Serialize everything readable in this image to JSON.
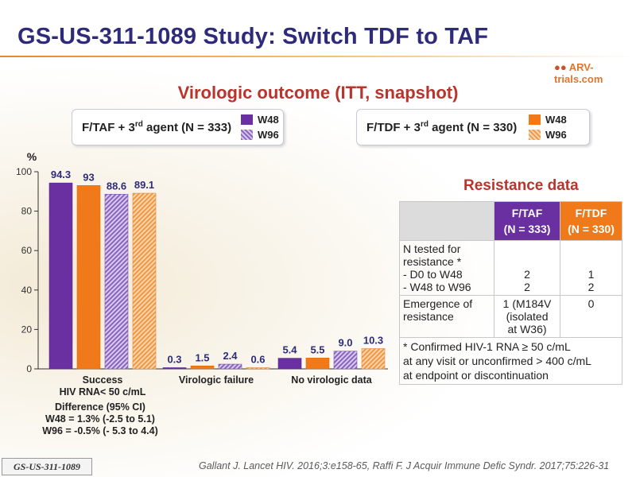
{
  "title": "GS-US-311-1089 Study: Switch TDF to TAF",
  "logo_text": "ARV-trials.com",
  "subtitle": "Virologic outcome (ITT, snapshot)",
  "legend_left": {
    "label_pre": "F/TAF + 3",
    "label_sup": "rd",
    "label_post": " agent (N = 333)",
    "w48": "W48",
    "w96": "W96"
  },
  "legend_right": {
    "label_pre": "F/TDF + 3",
    "label_sup": "rd",
    "label_post": " agent (N = 330)",
    "w48": "W48",
    "w96": "W96"
  },
  "colors": {
    "taf_solid": "#6a2fa0",
    "taf_hatch": "#8d66c0",
    "tdf_solid": "#f07a1a",
    "tdf_hatch": "#f39a4a",
    "title": "#2e2b7a",
    "accent_red": "#b8342d"
  },
  "chart_data": {
    "type": "bar",
    "ylabel": "%",
    "ylim": [
      0,
      100
    ],
    "yticks": [
      0,
      20,
      40,
      60,
      80,
      100
    ],
    "categories": [
      "Success\nHIV RNA< 50 c/mL",
      "Virologic failure",
      "No virologic data"
    ],
    "series": [
      {
        "name": "F/TAF W48",
        "values": [
          94.3,
          0.3,
          5.4
        ],
        "labels": [
          "94.3",
          "0.3",
          "5.4"
        ]
      },
      {
        "name": "F/TDF W48",
        "values": [
          93,
          1.5,
          5.5
        ],
        "labels": [
          "93",
          "1.5",
          "5.5"
        ]
      },
      {
        "name": "F/TAF W96",
        "values": [
          88.6,
          2.4,
          9.0
        ],
        "labels": [
          "88.6",
          "2.4",
          "9.0"
        ]
      },
      {
        "name": "F/TDF W96",
        "values": [
          89.1,
          0.6,
          10.3
        ],
        "labels": [
          "89.1",
          "0.6",
          "10.3"
        ]
      }
    ],
    "grid": false,
    "legend": "top"
  },
  "difference": {
    "line1": "Difference (95% CI)",
    "line2": "W48 = 1.3% (-2.5 to 5.1)",
    "line3": "W96 = -0.5% (- 5.3 to 4.4)"
  },
  "resistance": {
    "title": "Resistance data",
    "col1": "F/TAF\n(N = 333)",
    "col2": "F/TDF\n(N = 330)",
    "row1_label": "N tested for resistance *\n- D0 to W48\n- W48 to W96",
    "row1_taf": "2\n2",
    "row1_tdf": "1\n2",
    "row2_label": "Emergence of resistance",
    "row2_taf": "1 (M184V\n(isolated\nat W36)",
    "row2_tdf": "0",
    "footnote": "* Confirmed HIV-1 RNA ≥ 50 c/mL\nat any visit or unconfirmed > 400 c/mL\nat endpoint or discontinuation"
  },
  "reference": "Gallant J. Lancet HIV. 2016;3:e158-65, Raffi F. J Acquir Immune Defic Syndr. 2017;75:226-31",
  "study_tag": "GS-US-311-1089"
}
